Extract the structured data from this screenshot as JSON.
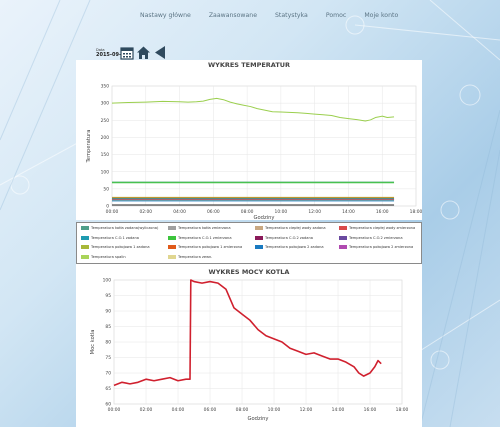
{
  "nav": {
    "items": [
      "Nastawy główne",
      "Zaawansowane",
      "Statystyka",
      "Pomoc",
      "Moje konto"
    ]
  },
  "date_picker": {
    "label": "Data",
    "value": "2015-09-25"
  },
  "icons": {
    "calendar": "calendar-icon",
    "home": "home-icon",
    "back": "back-arrow-icon"
  },
  "chart1": {
    "title": "WYKRES TEMPERATUR",
    "ylabel": "Temperatura",
    "xlabel": "Godziny"
  },
  "chart2": {
    "title": "WYKRES MOCY KOTLA",
    "ylabel": "Moc kotla",
    "xlabel": "Godziny"
  },
  "legend": {
    "items": [
      {
        "label": "Temperatura kotła zadana(wyliczona)",
        "color": "#4e9f8a"
      },
      {
        "label": "Temperatura kotła zmierzona",
        "color": "#a0a0a0"
      },
      {
        "label": "Temperatura ciepłej wody zadana",
        "color": "#c9a882"
      },
      {
        "label": "Temperatura ciepłej wody zmierzona",
        "color": "#d94a4a"
      },
      {
        "label": "Temperatura C.O.1 zadana",
        "color": "#1f9bb0"
      },
      {
        "label": "Temperatura C.O.1 zmierzona",
        "color": "#3cc43c"
      },
      {
        "label": "Temperatura C.O.2 zadana",
        "color": "#8a1a5a"
      },
      {
        "label": "Temperatura C.O.2 zmierzona",
        "color": "#6a4aa0"
      },
      {
        "label": "Temperatura pokojowa 1 zadana",
        "color": "#a8b838"
      },
      {
        "label": "Temperatura pokojowa 1 zmierzona",
        "color": "#e05a1a"
      },
      {
        "label": "Temperatura pokojowa 2 zadana",
        "color": "#1a7ac0"
      },
      {
        "label": "Temperatura pokojowa 2 zmierzona",
        "color": "#b04ab0"
      },
      {
        "label": "Temperatura spalin",
        "color": "#a9d45a"
      },
      {
        "label": "Temperatura zewn.",
        "color": "#e0d690"
      }
    ]
  },
  "chart_data": [
    {
      "type": "line",
      "title": "WYKRES TEMPERATUR",
      "xlabel": "Godziny",
      "ylabel": "Temperatura",
      "xlim": [
        0,
        18
      ],
      "ylim": [
        0,
        350
      ],
      "xticks": [
        "00:00",
        "02:00",
        "04:00",
        "06:00",
        "08:00",
        "10:00",
        "12:00",
        "14:00",
        "16:00",
        "18:00"
      ],
      "yticks": [
        0,
        50,
        100,
        150,
        200,
        250,
        300,
        350
      ],
      "series": [
        {
          "name": "Temperatura spalin",
          "color": "#9bcf4e",
          "x": [
            0,
            1,
            2,
            3,
            4,
            4.5,
            5,
            5.4,
            5.8,
            6.2,
            6.6,
            7,
            7.4,
            7.8,
            8.2,
            8.6,
            9,
            9.5,
            10,
            10.5,
            11,
            11.5,
            12,
            12.5,
            13,
            13.5,
            14,
            14.5,
            15,
            15.3,
            15.6,
            16,
            16.3,
            16.7
          ],
          "y": [
            300,
            302,
            303,
            305,
            304,
            303,
            304,
            306,
            311,
            314,
            310,
            303,
            298,
            294,
            290,
            284,
            280,
            275,
            274,
            273,
            272,
            270,
            268,
            266,
            264,
            258,
            255,
            252,
            248,
            251,
            258,
            262,
            258,
            260
          ]
        },
        {
          "name": "Temperatura kotła zadana(wyliczona)",
          "color": "#6fb88e",
          "x": [
            0,
            16.7
          ],
          "y": [
            70,
            70
          ]
        },
        {
          "name": "Temperatura C.O.1 zmierzona",
          "color": "#3cc43c",
          "x": [
            0,
            16.7
          ],
          "y": [
            68,
            68
          ]
        },
        {
          "name": "Temperatura pokojowa 1 zadana",
          "color": "#a8b838",
          "x": [
            0,
            16.7
          ],
          "y": [
            25,
            25
          ]
        },
        {
          "name": "Temperatura pokojowa 1 zmierzona",
          "color": "#e05a1a",
          "x": [
            0,
            16.7
          ],
          "y": [
            23,
            23
          ]
        },
        {
          "name": "Temperatura C.O.1 zadana",
          "color": "#1f9bb0",
          "x": [
            0,
            16.7
          ],
          "y": [
            21,
            21
          ]
        },
        {
          "name": "Temperatura C.O.2 zadana",
          "color": "#8a1a5a",
          "x": [
            0,
            16.7
          ],
          "y": [
            19,
            19
          ]
        },
        {
          "name": "Temperatura zewn.",
          "color": "#e0d690",
          "x": [
            0,
            16.7
          ],
          "y": [
            17,
            17
          ]
        },
        {
          "name": "Temperatura pokojowa 2 zadana",
          "color": "#1a7ac0",
          "x": [
            0,
            16.7
          ],
          "y": [
            15,
            15
          ]
        },
        {
          "name": "Temperatura ciepłej wody zmierzona",
          "color": "#222222",
          "x": [
            0,
            16.7
          ],
          "y": [
            3,
            3
          ]
        }
      ]
    },
    {
      "type": "line",
      "title": "WYKRES MOCY KOTLA",
      "xlabel": "Godziny",
      "ylabel": "Moc kotla",
      "xlim": [
        0,
        18
      ],
      "ylim": [
        60,
        100
      ],
      "xticks": [
        "00:00",
        "02:00",
        "04:00",
        "06:00",
        "08:00",
        "10:00",
        "12:00",
        "14:00",
        "16:00",
        "18:00"
      ],
      "yticks": [
        60,
        65,
        70,
        75,
        80,
        85,
        90,
        95,
        100
      ],
      "series": [
        {
          "name": "Moc kotla",
          "color": "#d0202e",
          "x": [
            0,
            0.5,
            1,
            1.5,
            2,
            2.5,
            3,
            3.5,
            4,
            4.5,
            4.75,
            4.8,
            5,
            5.5,
            6,
            6.5,
            7,
            7.5,
            8,
            8.5,
            9,
            9.5,
            10,
            10.5,
            11,
            11.5,
            12,
            12.5,
            13,
            13.5,
            14,
            14.5,
            15,
            15.3,
            15.6,
            16,
            16.3,
            16.5,
            16.7
          ],
          "y": [
            66,
            67,
            66.5,
            67,
            68,
            67.5,
            68,
            68.5,
            67.5,
            68,
            68,
            100,
            99.5,
            99,
            99.5,
            99,
            97,
            91,
            89,
            87,
            84,
            82,
            81,
            80,
            78,
            77,
            76,
            76.5,
            75.5,
            74.5,
            74.5,
            73.5,
            72,
            70,
            69,
            70,
            72,
            74,
            73
          ]
        }
      ]
    }
  ]
}
